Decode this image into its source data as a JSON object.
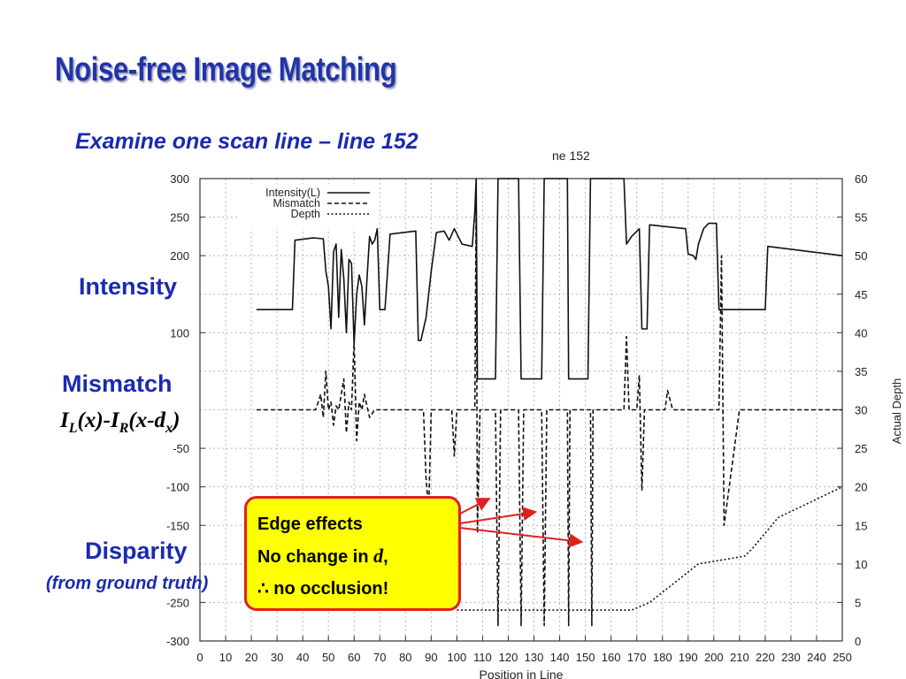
{
  "slide": {
    "title": "Noise-free Image Matching",
    "subtitle": "Examine one scan line – line 152",
    "labels": {
      "intensity": "Intensity",
      "mismatch": "Mismatch",
      "formula": {
        "I1": "I",
        "sub1": "L",
        "mid": "(x)-",
        "I2": "I",
        "sub2": "R",
        "mid2": "(x-d",
        "sub3": "x",
        "end": ")"
      },
      "disparity": "Disparity",
      "disparity_sub": "(from ground truth)"
    },
    "callout": {
      "line1": "Edge effects",
      "line2_prefix": "No change in ",
      "line2_var": "d",
      "line2_suffix": ",",
      "line3": "∴ no occlusion!"
    },
    "colors": {
      "title": "#2233aa",
      "text": "#1a2ab0",
      "callout_bg": "#ffff00",
      "callout_border": "#e02020",
      "arrow": "#e02020"
    }
  },
  "chart_data": {
    "type": "line",
    "title": "ne 152",
    "xlabel": "Position in Line",
    "ylabel_right": "Actual Depth",
    "xlim": [
      0,
      250
    ],
    "ylim_left": [
      -300,
      300
    ],
    "ylim_right": [
      0,
      60
    ],
    "grid": true,
    "legend_position": "top-left",
    "x_ticks": [
      0,
      10,
      20,
      30,
      40,
      50,
      60,
      70,
      80,
      90,
      100,
      110,
      120,
      130,
      140,
      150,
      160,
      170,
      180,
      190,
      200,
      210,
      220,
      230,
      240,
      250
    ],
    "y_ticks_left": [
      300,
      250,
      200,
      100,
      -50,
      -100,
      -150,
      -250,
      -300
    ],
    "y_ticks_right": [
      60,
      55,
      50,
      45,
      40,
      35,
      30,
      25,
      20,
      15,
      10,
      5,
      0
    ],
    "series": [
      {
        "name": "Intensity(L)",
        "style": "solid",
        "axis": "left",
        "points": [
          [
            22,
            130
          ],
          [
            36,
            130
          ],
          [
            37,
            220
          ],
          [
            44,
            223
          ],
          [
            48,
            222
          ],
          [
            49,
            180
          ],
          [
            50,
            160
          ],
          [
            51,
            105
          ],
          [
            52,
            205
          ],
          [
            53,
            215
          ],
          [
            54,
            120
          ],
          [
            55,
            208
          ],
          [
            56,
            170
          ],
          [
            57,
            100
          ],
          [
            58,
            195
          ],
          [
            59,
            190
          ],
          [
            60,
            85
          ],
          [
            61,
            150
          ],
          [
            62,
            175
          ],
          [
            63,
            160
          ],
          [
            64,
            110
          ],
          [
            65,
            170
          ],
          [
            66,
            225
          ],
          [
            67,
            215
          ],
          [
            68,
            220
          ],
          [
            69,
            235
          ],
          [
            70,
            130
          ],
          [
            72,
            130
          ],
          [
            74,
            228
          ],
          [
            84,
            232
          ],
          [
            85,
            90
          ],
          [
            86,
            90
          ],
          [
            88,
            120
          ],
          [
            90,
            180
          ],
          [
            92,
            230
          ],
          [
            95,
            232
          ],
          [
            97,
            220
          ],
          [
            99,
            235
          ],
          [
            102,
            215
          ],
          [
            106,
            212
          ],
          [
            107,
            258
          ],
          [
            107.5,
            300
          ],
          [
            108,
            40
          ],
          [
            115,
            40
          ],
          [
            116,
            300
          ],
          [
            124,
            300
          ],
          [
            125,
            40
          ],
          [
            133,
            40
          ],
          [
            134,
            300
          ],
          [
            143,
            300
          ],
          [
            143.5,
            40
          ],
          [
            151,
            40
          ],
          [
            152,
            300
          ],
          [
            165,
            300
          ],
          [
            166,
            215
          ],
          [
            168,
            225
          ],
          [
            171,
            235
          ],
          [
            172,
            105
          ],
          [
            174,
            105
          ],
          [
            175,
            240
          ],
          [
            189,
            235
          ],
          [
            190,
            202
          ],
          [
            192,
            200
          ],
          [
            193,
            195
          ],
          [
            194,
            215
          ],
          [
            196,
            235
          ],
          [
            198,
            242
          ],
          [
            201,
            242
          ],
          [
            202,
            130
          ],
          [
            220,
            130
          ],
          [
            221,
            212
          ],
          [
            250,
            200
          ]
        ]
      },
      {
        "name": "Mismatch",
        "style": "dashed",
        "axis": "left",
        "points": [
          [
            22,
            0
          ],
          [
            45,
            0
          ],
          [
            47,
            20
          ],
          [
            48,
            -10
          ],
          [
            49,
            50
          ],
          [
            50,
            0
          ],
          [
            51,
            10
          ],
          [
            52,
            -20
          ],
          [
            53,
            5
          ],
          [
            54,
            0
          ],
          [
            56,
            40
          ],
          [
            57,
            -30
          ],
          [
            58,
            10
          ],
          [
            59,
            0
          ],
          [
            60,
            90
          ],
          [
            61,
            -40
          ],
          [
            62,
            10
          ],
          [
            63,
            0
          ],
          [
            64,
            20
          ],
          [
            66,
            -10
          ],
          [
            68,
            0
          ],
          [
            87,
            0
          ],
          [
            88,
            -90
          ],
          [
            89,
            -130
          ],
          [
            90,
            0
          ],
          [
            98,
            0
          ],
          [
            99,
            -60
          ],
          [
            100,
            0
          ],
          [
            107,
            0
          ],
          [
            107.5,
            275
          ],
          [
            108,
            -160
          ],
          [
            109,
            0
          ],
          [
            115,
            0
          ],
          [
            116,
            -280
          ],
          [
            117,
            0
          ],
          [
            124,
            0
          ],
          [
            125,
            -280
          ],
          [
            126,
            0
          ],
          [
            133,
            0
          ],
          [
            134,
            -280
          ],
          [
            135,
            0
          ],
          [
            143,
            0
          ],
          [
            143.5,
            -280
          ],
          [
            144,
            0
          ],
          [
            152,
            0
          ],
          [
            152.5,
            -280
          ],
          [
            153,
            0
          ],
          [
            165,
            0
          ],
          [
            166,
            95
          ],
          [
            167,
            0
          ],
          [
            170,
            0
          ],
          [
            171,
            45
          ],
          [
            172,
            -105
          ],
          [
            173,
            0
          ],
          [
            181,
            0
          ],
          [
            182,
            25
          ],
          [
            184,
            0
          ],
          [
            202,
            0
          ],
          [
            203,
            200
          ],
          [
            204,
            -150
          ],
          [
            210,
            0
          ],
          [
            250,
            0
          ]
        ]
      },
      {
        "name": "Depth",
        "style": "dotted",
        "axis": "right",
        "points": [
          [
            100,
            4
          ],
          [
            112,
            4
          ],
          [
            148,
            4
          ],
          [
            168,
            4
          ],
          [
            175,
            5
          ],
          [
            194,
            10
          ],
          [
            212,
            11
          ],
          [
            215,
            12
          ],
          [
            225,
            16
          ],
          [
            250,
            20
          ]
        ]
      }
    ],
    "annotations": [
      {
        "text": "Edge effects",
        "arrows_to_x": [
          116,
          134,
          152
        ]
      }
    ]
  }
}
